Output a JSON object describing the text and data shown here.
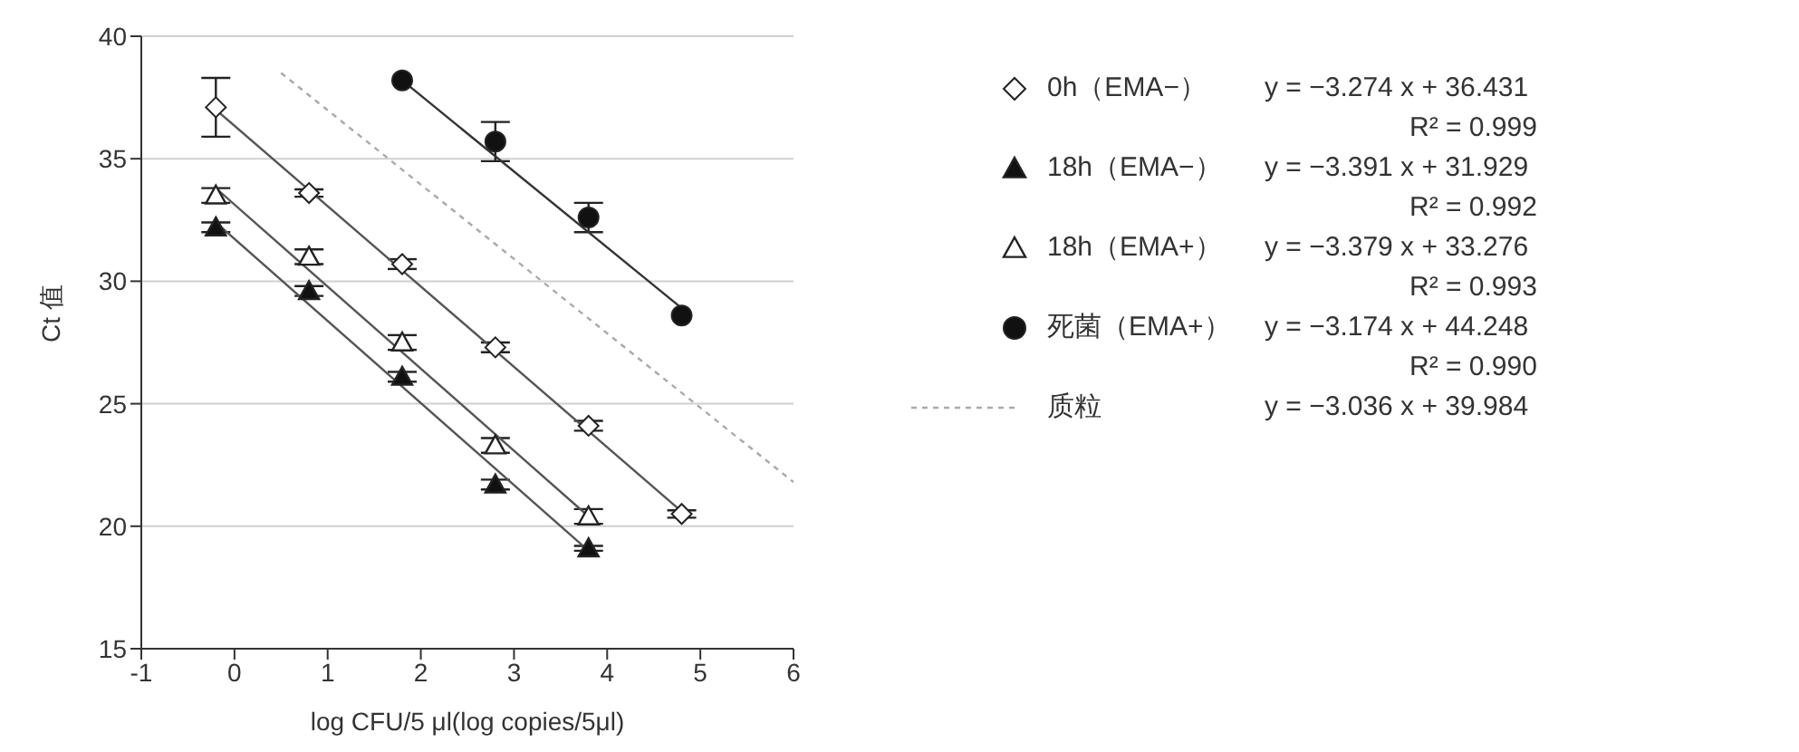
{
  "chart_data": {
    "type": "scatter",
    "xlabel": "log CFU/5 μl(log copies/5μl)",
    "ylabel": "Ct 值",
    "xlim": [
      -1,
      6
    ],
    "xticks": [
      -1,
      0,
      1,
      2,
      3,
      4,
      5,
      6
    ],
    "ylim": [
      15,
      40
    ],
    "yticks": [
      15,
      20,
      25,
      30,
      35,
      40
    ],
    "grid": "y",
    "legend": "right",
    "series": [
      {
        "name": "0h（EMA−）",
        "marker": "diamond",
        "color": "#ffffff",
        "x": [
          -0.2,
          0.8,
          1.8,
          2.8,
          3.8,
          4.8
        ],
        "values": [
          37.1,
          33.6,
          30.7,
          27.3,
          24.1,
          20.5
        ],
        "errors": [
          1.2,
          0.15,
          0.2,
          0.2,
          0.2,
          0.15
        ]
      },
      {
        "name": "18h（EMA−）",
        "marker": "triangle",
        "color": "#111111",
        "x": [
          -0.2,
          0.8,
          1.8,
          2.8,
          3.8
        ],
        "values": [
          32.2,
          29.6,
          26.1,
          21.7,
          19.1
        ],
        "errors": [
          0.2,
          0.2,
          0.2,
          0.2,
          0.1
        ]
      },
      {
        "name": "18h（EMA+）",
        "marker": "triangle",
        "color": "#ffffff",
        "x": [
          -0.2,
          0.8,
          1.8,
          2.8,
          3.8
        ],
        "values": [
          33.5,
          31.0,
          27.5,
          23.3,
          20.4
        ],
        "errors": [
          0.3,
          0.3,
          0.3,
          0.3,
          0.3
        ]
      },
      {
        "name": "死菌（EMA+）",
        "marker": "circle",
        "color": "#111111",
        "x": [
          1.8,
          2.8,
          3.8,
          4.8
        ],
        "values": [
          38.2,
          35.7,
          32.6,
          28.6
        ],
        "errors": [
          null,
          0.8,
          0.6,
          null
        ]
      },
      {
        "type": "line",
        "color": "#555555",
        "x": [
          -0.2,
          4.8
        ],
        "values": [
          37.0,
          20.6
        ]
      },
      {
        "type": "line",
        "color": "#555555",
        "x": [
          -0.2,
          3.8
        ],
        "values": [
          32.4,
          19.0
        ]
      },
      {
        "type": "line",
        "color": "#555555",
        "x": [
          -0.2,
          3.8
        ],
        "values": [
          33.8,
          20.4
        ]
      },
      {
        "type": "line",
        "color": "#333333",
        "x": [
          1.8,
          4.8
        ],
        "values": [
          38.2,
          28.9
        ]
      },
      {
        "name": "质粒",
        "type": "line",
        "line_style": "dashed",
        "color": "#aaaaaa",
        "x": [
          0.5,
          6
        ],
        "values": [
          38.5,
          21.8
        ]
      }
    ],
    "annotations": [
      "y = −3.274 x + 36.431",
      "R² = 0.999",
      "y = −3.391 x + 31.929",
      "R² = 0.992",
      "y = −3.379 x + 33.276",
      "R² = 0.993",
      "y = −3.174 x + 44.248",
      "R² = 0.990",
      "y = −3.036 x + 39.984"
    ]
  }
}
